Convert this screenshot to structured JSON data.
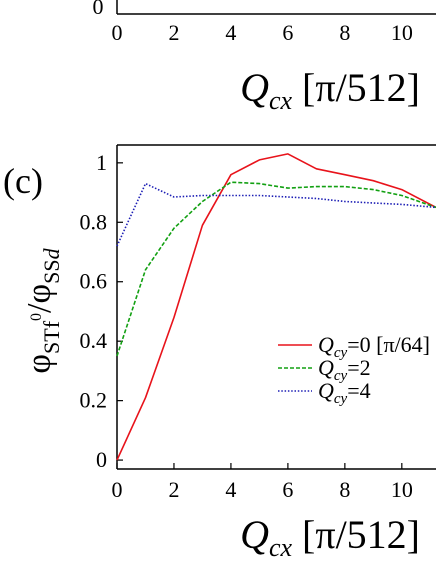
{
  "top_panel": {
    "y_tick_visible": "0",
    "x_ticks": [
      "0",
      "2",
      "4",
      "6",
      "8",
      "10"
    ],
    "xlabel_var": "Q",
    "xlabel_sub": "cx",
    "xlabel_unit": " [π/512]"
  },
  "chart_data": {
    "type": "line",
    "panel_label": "(c)",
    "xlabel_var": "Q",
    "xlabel_sub": "cx",
    "xlabel_unit": " [π/512]",
    "ylabel_left": "φ",
    "ylabel_left_sub": "STf",
    "ylabel_left_sup": "0",
    "ylabel_sep": "/",
    "ylabel_right": "φ",
    "ylabel_right_sub": "SS",
    "ylabel_right_sub_italic": "d",
    "xlim": [
      0,
      11.2
    ],
    "ylim": [
      -0.03,
      1.06
    ],
    "x_ticks": [
      0,
      2,
      4,
      6,
      8,
      10
    ],
    "x_tick_labels": [
      "0",
      "2",
      "4",
      "6",
      "8",
      "10"
    ],
    "y_ticks": [
      0,
      0.2,
      0.4,
      0.6,
      0.8,
      1
    ],
    "y_tick_labels": [
      "0",
      "0.2",
      "0.4",
      "0.6",
      "0.8",
      "1"
    ],
    "legend_position": "center-right",
    "series": [
      {
        "name_var": "Q",
        "name_sub": "cy",
        "name_suffix": "=0 [π/64]",
        "color": "#e8131b",
        "dash": "solid",
        "x": [
          0,
          1,
          2,
          3,
          4,
          5,
          6,
          7,
          8,
          9,
          10,
          11.2
        ],
        "y": [
          0.0,
          0.21,
          0.48,
          0.79,
          0.96,
          1.01,
          1.03,
          0.98,
          0.96,
          0.94,
          0.91,
          0.85
        ]
      },
      {
        "name_var": "Q",
        "name_sub": "cy",
        "name_suffix": "=2",
        "color": "#12a012",
        "dash": "dashed",
        "x": [
          0,
          1,
          2,
          3,
          4,
          5,
          6,
          7,
          8,
          9,
          10,
          11.2
        ],
        "y": [
          0.35,
          0.64,
          0.78,
          0.87,
          0.935,
          0.93,
          0.915,
          0.92,
          0.92,
          0.91,
          0.89,
          0.85
        ]
      },
      {
        "name_var": "Q",
        "name_sub": "cy",
        "name_suffix": "=4",
        "color": "#1d1fb5",
        "dash": "dotted",
        "x": [
          0,
          1,
          2,
          3,
          4,
          5,
          6,
          7,
          8,
          9,
          10,
          11.2
        ],
        "y": [
          0.72,
          0.93,
          0.885,
          0.89,
          0.89,
          0.89,
          0.885,
          0.88,
          0.87,
          0.865,
          0.86,
          0.85
        ]
      }
    ]
  }
}
